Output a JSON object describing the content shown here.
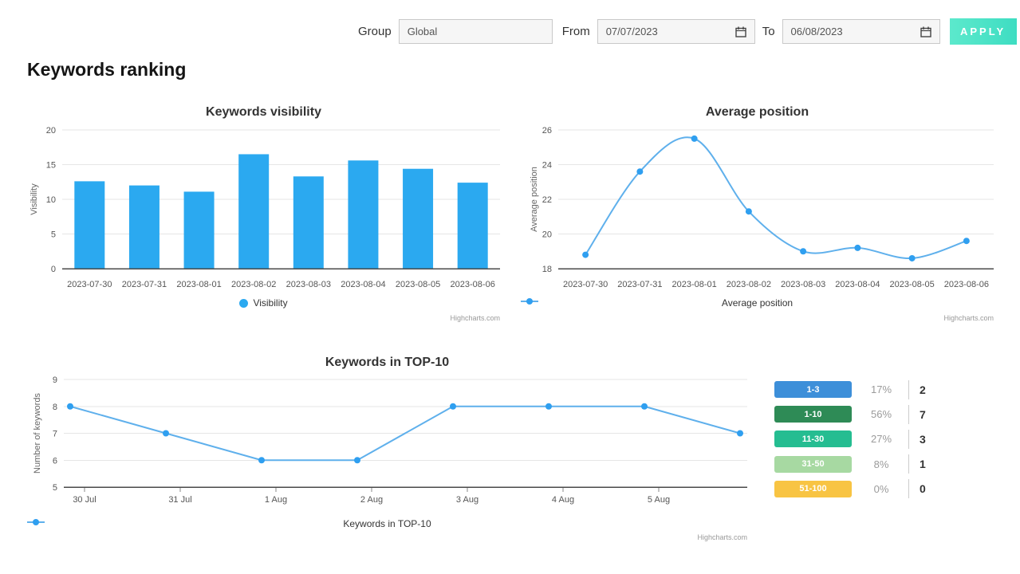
{
  "topbar": {
    "group_label": "Group",
    "group_value": "Global",
    "from_label": "From",
    "from_value": "07/07/2023",
    "to_label": "To",
    "to_value": "06/08/2023",
    "apply_label": "APPLY",
    "apply_gradient": [
      "#5ce9cc",
      "#3eddc2"
    ]
  },
  "page_title": "Keywords ranking",
  "chart_data": [
    {
      "type": "bar",
      "title": "Keywords visibility",
      "ylabel": "Visibility",
      "categories": [
        "2023-07-30",
        "2023-07-31",
        "2023-08-01",
        "2023-08-02",
        "2023-08-03",
        "2023-08-04",
        "2023-08-05",
        "2023-08-06"
      ],
      "values": [
        12.6,
        12.0,
        11.1,
        16.5,
        13.3,
        15.6,
        14.4,
        12.4
      ],
      "ylim": [
        0,
        20
      ],
      "yticks": [
        0,
        5,
        10,
        15,
        20
      ],
      "legend": "Visibility",
      "legend_position": "bottom",
      "grid": true,
      "color": "#2ba9f0",
      "credit": "Highcharts.com"
    },
    {
      "type": "line",
      "subtype": "spline",
      "title": "Average position",
      "ylabel": "Average position",
      "categories": [
        "2023-07-30",
        "2023-07-31",
        "2023-08-01",
        "2023-08-02",
        "2023-08-03",
        "2023-08-04",
        "2023-08-05",
        "2023-08-06"
      ],
      "values": [
        18.8,
        23.6,
        25.5,
        21.3,
        19.0,
        19.2,
        18.6,
        19.6
      ],
      "ylim": [
        18,
        26
      ],
      "yticks": [
        18,
        20,
        22,
        24,
        26
      ],
      "legend": "Average position",
      "legend_position": "bottom",
      "grid": true,
      "line_color": "#5fb0ec",
      "marker_color": "#2f9ff0",
      "credit": "Highcharts.com"
    },
    {
      "type": "line",
      "subtype": "straight",
      "title": "Keywords in TOP-10",
      "ylabel": "Number of keywords",
      "x_tick_labels": [
        "30 Jul",
        "31 Jul",
        "1 Aug",
        "2 Aug",
        "3 Aug",
        "4 Aug",
        "5 Aug"
      ],
      "values": [
        8,
        7,
        6,
        6,
        8,
        8,
        8,
        7
      ],
      "ylim": [
        5,
        9
      ],
      "yticks": [
        5,
        6,
        7,
        8,
        9
      ],
      "legend": "Keywords in TOP-10",
      "legend_position": "bottom",
      "grid": true,
      "line_color": "#5fb0ec",
      "marker_color": "#2f9ff0",
      "credit": "Highcharts.com"
    }
  ],
  "ranking_table": {
    "rows": [
      {
        "range": "1-3",
        "color": "#3d8fd9",
        "percent": "17%",
        "count": "2"
      },
      {
        "range": "1-10",
        "color": "#2e8b56",
        "percent": "56%",
        "count": "7"
      },
      {
        "range": "11-30",
        "color": "#25bd91",
        "percent": "27%",
        "count": "3"
      },
      {
        "range": "31-50",
        "color": "#a7d9a2",
        "percent": "8%",
        "count": "1"
      },
      {
        "range": "51-100",
        "color": "#f8c443",
        "percent": "0%",
        "count": "0"
      }
    ]
  }
}
